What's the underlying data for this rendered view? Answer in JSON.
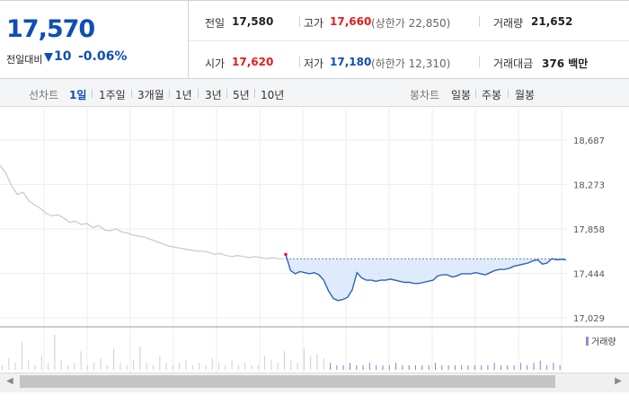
{
  "summary": {
    "price": "17,570",
    "diff_label": "전일대비",
    "diff_amount": "10",
    "diff_rate": "-0.06%",
    "items": {
      "prev_close": {
        "label": "전일",
        "value": "17,580"
      },
      "high": {
        "label": "고가",
        "value": "17,660",
        "sub": "(상한가 22,850)"
      },
      "volume": {
        "label": "거래량",
        "value": "21,652"
      },
      "open": {
        "label": "시가",
        "value": "17,620"
      },
      "low": {
        "label": "저가",
        "value": "17,180",
        "sub": "(하한가 12,310)"
      },
      "amount": {
        "label": "거래대금",
        "value": "376 백만"
      }
    }
  },
  "tabs": {
    "line_label": "선차트",
    "line_tabs": [
      "1일",
      "1주일",
      "3개월",
      "1년",
      "3년",
      "5년",
      "10년"
    ],
    "active_tab": "1일",
    "candle_label": "봉차트",
    "candle_tabs": [
      "일봉",
      "주봉",
      "월봉"
    ]
  },
  "chart_data": {
    "type": "line",
    "price_axis_ticks": [
      "18,687",
      "18,273",
      "17,858",
      "17,444",
      "17,029"
    ],
    "tick_values": [
      18687,
      18273,
      17858,
      17444,
      17029
    ],
    "reference_price": 17580,
    "volume_legend": "거래량",
    "prev_day_series": [
      18450,
      18380,
      18260,
      18180,
      18200,
      18120,
      18080,
      18050,
      18000,
      17980,
      17990,
      17960,
      17920,
      17930,
      17900,
      17910,
      17870,
      17890,
      17850,
      17840,
      17860,
      17830,
      17820,
      17800,
      17790,
      17780,
      17760,
      17740,
      17720,
      17700,
      17690,
      17680,
      17670,
      17660,
      17650,
      17650,
      17640,
      17620,
      17630,
      17610,
      17600,
      17610,
      17600,
      17590,
      17600,
      17590,
      17580,
      17590,
      17580,
      17580
    ],
    "today_series": [
      17620,
      17470,
      17440,
      17460,
      17450,
      17440,
      17450,
      17430,
      17380,
      17280,
      17210,
      17190,
      17200,
      17220,
      17290,
      17450,
      17400,
      17380,
      17380,
      17370,
      17380,
      17380,
      17390,
      17380,
      17370,
      17360,
      17360,
      17350,
      17350,
      17360,
      17370,
      17380,
      17420,
      17430,
      17430,
      17410,
      17420,
      17440,
      17440,
      17440,
      17450,
      17440,
      17430,
      17450,
      17470,
      17480,
      17480,
      17490,
      17510,
      17520,
      17530,
      17540,
      17560,
      17570,
      17530,
      17540,
      17580,
      17570,
      17575,
      17570
    ],
    "volume_bars": [
      2,
      5,
      3,
      12,
      4,
      2,
      6,
      3,
      15,
      4,
      2,
      3,
      8,
      2,
      3,
      5,
      2,
      9,
      3,
      2,
      4,
      10,
      3,
      2,
      6,
      3,
      2,
      3,
      4,
      2,
      3,
      2,
      5,
      3,
      2,
      4,
      2,
      3,
      2,
      2,
      6,
      4,
      3,
      8,
      4,
      3,
      9,
      6,
      7,
      5,
      3,
      2,
      2,
      3,
      2,
      2,
      3,
      2,
      2,
      2,
      3,
      2,
      2,
      2,
      2,
      2,
      3,
      2,
      2,
      2,
      2,
      2,
      2,
      2,
      2,
      3,
      2,
      2,
      2,
      3,
      2,
      3,
      4,
      2,
      3,
      2
    ]
  },
  "scrollbar": {
    "left_arrow": "◀",
    "right_arrow": "▶"
  }
}
